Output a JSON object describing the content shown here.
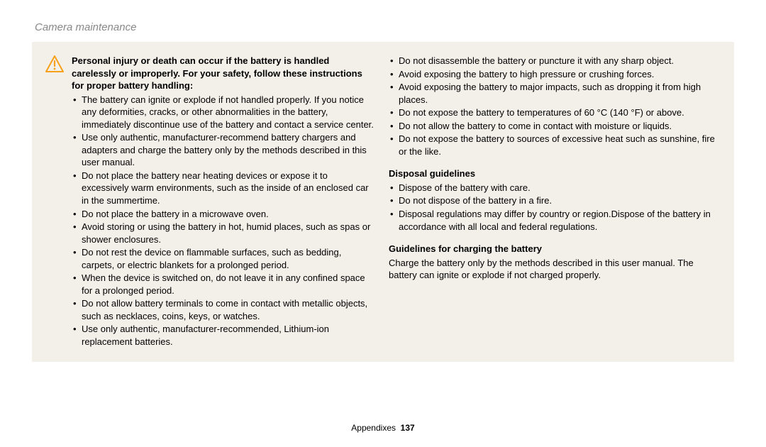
{
  "header": "Camera maintenance",
  "lead": "Personal injury or death can occur if the battery is handled carelessly or improperly. For your safety, follow these instructions for proper battery handling:",
  "left_bullets": [
    "The battery can ignite or explode if not handled properly. If you notice any deformities, cracks, or other abnormalities in the battery, immediately discontinue use of the battery and contact a service center.",
    "Use only authentic, manufacturer-recommend battery chargers and adapters and charge the battery only by the methods described in this user manual.",
    "Do not place the battery near heating devices or expose it to excessively warm environments, such as the inside of an enclosed car in the summertime.",
    "Do not place the battery in a microwave oven.",
    "Avoid storing or using the battery in hot, humid places, such as spas or shower enclosures.",
    "Do not rest the device on flammable surfaces, such as bedding, carpets, or electric blankets for a prolonged period.",
    "When the device is switched on, do not leave it in any confined space for a prolonged period.",
    "Do not allow battery terminals to come in contact with metallic objects, such as necklaces, coins, keys, or watches.",
    "Use only authentic, manufacturer-recommended, Lithium-ion replacement batteries."
  ],
  "right_top_bullets": [
    "Do not disassemble the battery or puncture it with any sharp object.",
    "Avoid exposing the battery to high pressure or crushing forces.",
    "Avoid exposing the battery to major impacts, such as dropping it from high places.",
    "Do not expose the battery to temperatures of 60 °C (140 °F) or above.",
    "Do not allow the battery to come in contact with moisture or liquids.",
    "Do not expose the battery to sources of excessive heat such as sunshine, fire or the like."
  ],
  "disposal_heading": "Disposal guidelines",
  "disposal_bullets": [
    "Dispose of the battery with care.",
    "Do not dispose of the battery in a fire.",
    "Disposal regulations may differ by country or region.Dispose of the battery in accordance with all local and federal regulations."
  ],
  "charging_heading": "Guidelines for charging the battery",
  "charging_text": "Charge the battery only by the methods described in this user manual. The battery can ignite or explode if not charged properly.",
  "footer_label": "Appendixes",
  "footer_page": "137",
  "colors": {
    "box_bg": "#f3f0ea",
    "header_color": "#888888",
    "icon_stroke": "#f7a11a"
  }
}
